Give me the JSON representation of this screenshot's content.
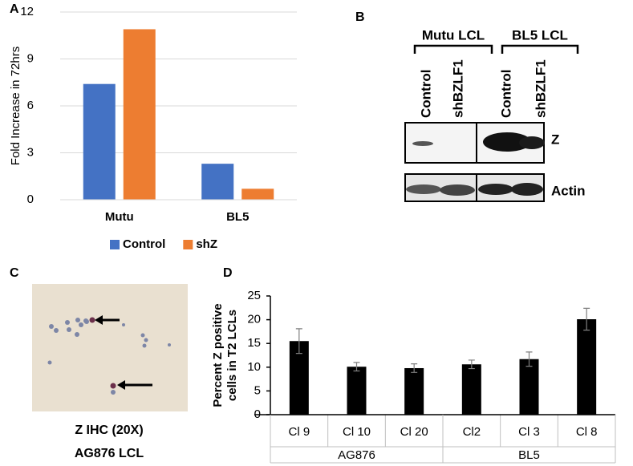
{
  "chart_data": [
    {
      "type": "bar",
      "panel_label": "A",
      "ylabel": "Fold Increase in 72hrs",
      "categories": [
        "Mutu",
        "BL5"
      ],
      "series": [
        {
          "name": "Control",
          "color": "#4472c4",
          "values": [
            7.4,
            2.3
          ]
        },
        {
          "name": "shZ",
          "color": "#ed7d31",
          "values": [
            10.9,
            0.7
          ]
        }
      ],
      "ylim": [
        0,
        12
      ],
      "yticks": [
        0,
        3,
        6,
        9,
        12
      ],
      "grid": true,
      "legend": "bottom"
    },
    {
      "type": "bar",
      "panel_label": "D",
      "ylabel": [
        "Percent Z positive",
        "cells in T2 LCLs"
      ],
      "categories": [
        "Cl 9",
        "Cl 10",
        "Cl 20",
        "Cl2",
        "Cl 3",
        "Cl 8"
      ],
      "groups": [
        {
          "name": "AG876",
          "count": 3
        },
        {
          "name": "BL5",
          "count": 3
        }
      ],
      "values": [
        15.5,
        10.1,
        9.8,
        10.6,
        11.7,
        20.1
      ],
      "errors": [
        2.6,
        0.9,
        0.9,
        0.9,
        1.5,
        2.3
      ],
      "color": "#000000",
      "ylim": [
        0,
        25
      ],
      "yticks": [
        0,
        5,
        10,
        15,
        20,
        25
      ],
      "grid": false
    }
  ],
  "blot": {
    "panel_label": "B",
    "groups": [
      {
        "label": "Mutu LCL",
        "lanes": [
          "Control",
          "shBZLF1"
        ]
      },
      {
        "label": "BL5 LCL",
        "lanes": [
          "Control",
          "shBZLF1"
        ]
      }
    ],
    "rows": [
      "Z",
      "Actin"
    ]
  },
  "micrograph": {
    "panel_label": "C",
    "caption": [
      "Z IHC (20X)",
      "AG876 LCL"
    ]
  }
}
